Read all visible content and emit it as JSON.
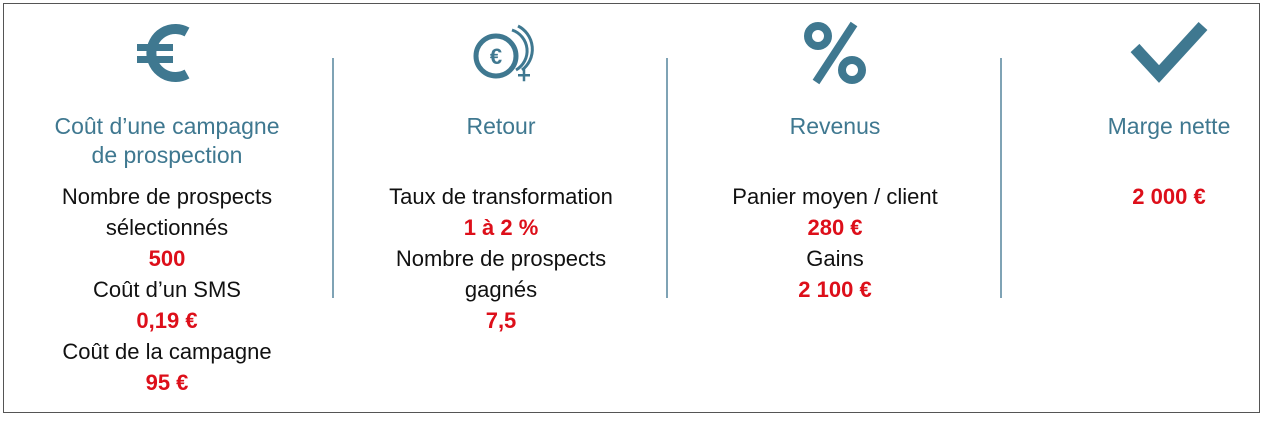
{
  "colors": {
    "heading": "#3f7890",
    "value": "#dd0f1a",
    "icon": "#3f7890",
    "text": "#111111"
  },
  "columns": [
    {
      "icon": "euro-icon",
      "heading_line1": "Coût d’une campagne",
      "heading_line2": "de prospection",
      "items": [
        {
          "label1": "Nombre de prospects",
          "label2": "sélectionnés",
          "value": "500"
        },
        {
          "label1": "Coût d’un SMS",
          "value": "0,19 €"
        },
        {
          "label1": "Coût de la campagne",
          "value": "95 €"
        }
      ]
    },
    {
      "icon": "coin-plus-icon",
      "heading": "Retour",
      "items": [
        {
          "label1": "Taux de transformation",
          "value": "1 à 2 %"
        },
        {
          "label1": "Nombre de prospects",
          "label2": "gagnés",
          "value": "7,5"
        }
      ]
    },
    {
      "icon": "percent-icon",
      "heading": "Revenus",
      "items": [
        {
          "label1": "Panier moyen / client",
          "value": "280 €"
        },
        {
          "label1": "Gains",
          "value": "2 100 €"
        }
      ]
    },
    {
      "icon": "checkmark-icon",
      "heading": "Marge nette",
      "items": [
        {
          "value": "2 000 €"
        }
      ]
    }
  ]
}
